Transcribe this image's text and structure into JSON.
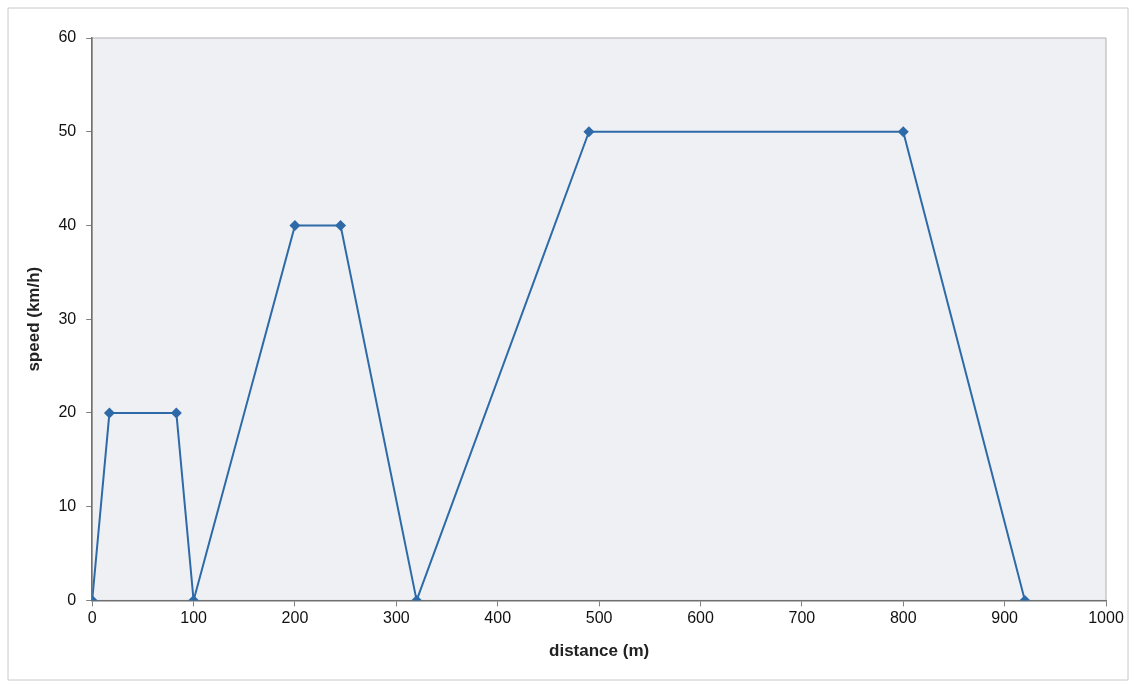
{
  "chart_data": {
    "type": "line",
    "xlabel": "distance (m)",
    "ylabel": "speed (km/h)",
    "x": [
      0,
      17,
      83,
      100,
      200,
      245,
      320,
      490,
      800,
      920
    ],
    "series": [
      {
        "color": "#2e6aa8",
        "values": [
          0,
          20,
          20,
          0,
          40,
          40,
          0,
          50,
          50,
          0
        ]
      }
    ],
    "xlim": [
      0,
      1000
    ],
    "xticks": [
      0,
      100,
      200,
      300,
      400,
      500,
      600,
      700,
      800,
      900,
      1000
    ],
    "ylim": [
      0,
      60
    ],
    "yticks": [
      0,
      10,
      20,
      30,
      40,
      50,
      60
    ],
    "grid": false,
    "legend": false,
    "marker": "diamond",
    "line_style": "solid"
  }
}
